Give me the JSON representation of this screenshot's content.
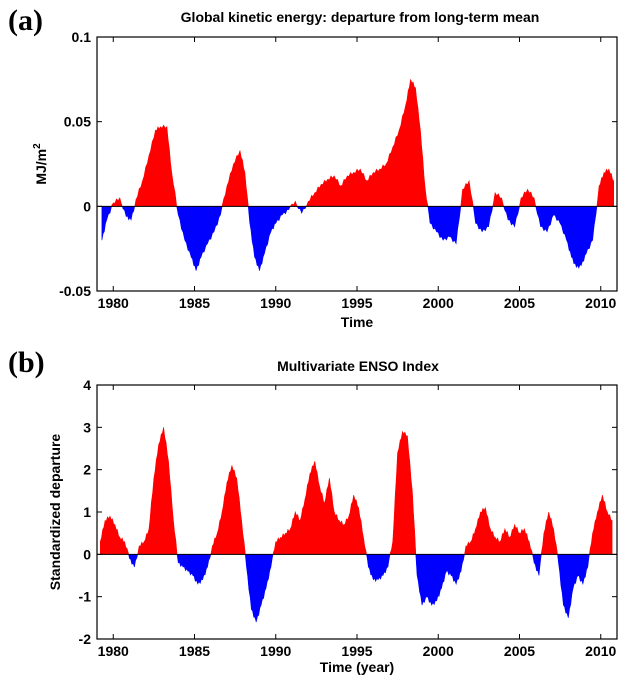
{
  "panels": [
    {
      "letter": "(a)"
    },
    {
      "letter": "(b)"
    }
  ],
  "colors": {
    "positive": "#ff0000",
    "negative": "#0000ff",
    "axis": "#000000"
  },
  "chart_data": [
    {
      "type": "area",
      "title": "Global kinetic energy: departure from long-term mean",
      "xlabel": "Time",
      "ylabel": "MJ/m",
      "ylabel_superscript": "2",
      "xlim": [
        1979,
        2011
      ],
      "ylim": [
        -0.05,
        0.1
      ],
      "xticks": [
        1980,
        1985,
        1990,
        1995,
        2000,
        2005,
        2010
      ],
      "xtick_labels": [
        "1980",
        "1985",
        "1990",
        "1995",
        "2000",
        "2005",
        "2010"
      ],
      "yticks": [
        -0.05,
        0,
        0.05,
        0.1
      ],
      "ytick_labels": [
        "-0.05",
        "0",
        "0.05",
        "0.1"
      ],
      "fill_positive": "red",
      "fill_negative": "blue",
      "x": [
        1979.3,
        1979.6,
        1980.0,
        1980.4,
        1980.8,
        1981.1,
        1981.4,
        1981.8,
        1982.2,
        1982.6,
        1982.9,
        1983.3,
        1983.6,
        1984.0,
        1984.4,
        1984.8,
        1985.1,
        1985.4,
        1985.8,
        1986.2,
        1986.6,
        1987.0,
        1987.4,
        1987.8,
        1988.1,
        1988.4,
        1988.7,
        1989.0,
        1989.3,
        1989.7,
        1990.0,
        1990.4,
        1990.8,
        1991.2,
        1991.6,
        1992.0,
        1992.4,
        1992.8,
        1993.2,
        1993.6,
        1994.0,
        1994.4,
        1994.8,
        1995.2,
        1995.6,
        1996.0,
        1996.4,
        1996.8,
        1997.2,
        1997.6,
        1998.0,
        1998.3,
        1998.6,
        1998.9,
        1999.2,
        1999.5,
        1999.9,
        2000.3,
        2000.7,
        2001.1,
        2001.5,
        2001.9,
        2002.3,
        2002.7,
        2003.1,
        2003.5,
        2003.9,
        2004.3,
        2004.7,
        2005.1,
        2005.5,
        2005.9,
        2006.3,
        2006.7,
        2007.1,
        2007.5,
        2007.9,
        2008.2,
        2008.5,
        2008.8,
        2009.1,
        2009.5,
        2009.9,
        2010.2,
        2010.5,
        2010.8
      ],
      "y": [
        -0.02,
        -0.008,
        0.002,
        0.005,
        -0.006,
        -0.008,
        0.004,
        0.015,
        0.03,
        0.045,
        0.047,
        0.047,
        0.02,
        -0.005,
        -0.02,
        -0.03,
        -0.038,
        -0.03,
        -0.022,
        -0.015,
        -0.005,
        0.012,
        0.025,
        0.033,
        0.02,
        -0.01,
        -0.03,
        -0.038,
        -0.028,
        -0.015,
        -0.01,
        -0.005,
        -0.002,
        0.003,
        -0.004,
        0.003,
        0.008,
        0.013,
        0.016,
        0.018,
        0.012,
        0.018,
        0.02,
        0.022,
        0.015,
        0.02,
        0.022,
        0.025,
        0.035,
        0.045,
        0.06,
        0.075,
        0.07,
        0.045,
        0.01,
        -0.01,
        -0.015,
        -0.02,
        -0.018,
        -0.022,
        0.01,
        0.015,
        -0.01,
        -0.015,
        -0.012,
        0.008,
        0.005,
        -0.008,
        -0.012,
        0.005,
        0.01,
        0.005,
        -0.012,
        -0.015,
        -0.005,
        -0.01,
        -0.02,
        -0.03,
        -0.036,
        -0.035,
        -0.028,
        -0.02,
        0.012,
        0.02,
        0.022,
        0.015
      ]
    },
    {
      "type": "area",
      "title": "Multivariate ENSO Index",
      "xlabel": "Time (year)",
      "ylabel": "Standardized departure",
      "xlim": [
        1979,
        2011
      ],
      "ylim": [
        -2,
        4
      ],
      "xticks": [
        1980,
        1985,
        1990,
        1995,
        2000,
        2005,
        2010
      ],
      "xtick_labels": [
        "1980",
        "1985",
        "1990",
        "1995",
        "2000",
        "2005",
        "2010"
      ],
      "yticks": [
        -2,
        -1,
        0,
        1,
        2,
        3,
        4
      ],
      "ytick_labels": [
        "-2",
        "-1",
        "0",
        "1",
        "2",
        "3",
        "4"
      ],
      "fill_positive": "red",
      "fill_negative": "blue",
      "x": [
        1979.2,
        1979.5,
        1979.8,
        1980.1,
        1980.4,
        1980.7,
        1981.0,
        1981.3,
        1981.6,
        1981.9,
        1982.2,
        1982.5,
        1982.8,
        1983.1,
        1983.4,
        1983.7,
        1984.0,
        1984.3,
        1984.6,
        1984.9,
        1985.2,
        1985.5,
        1985.8,
        1986.1,
        1986.4,
        1986.7,
        1987.0,
        1987.3,
        1987.6,
        1987.9,
        1988.2,
        1988.5,
        1988.8,
        1989.1,
        1989.4,
        1989.7,
        1990.0,
        1990.3,
        1990.6,
        1990.9,
        1991.2,
        1991.5,
        1991.8,
        1992.1,
        1992.4,
        1992.7,
        1993.0,
        1993.3,
        1993.6,
        1993.9,
        1994.2,
        1994.5,
        1994.8,
        1995.1,
        1995.4,
        1995.7,
        1996.0,
        1996.3,
        1996.6,
        1996.9,
        1997.2,
        1997.5,
        1997.8,
        1998.1,
        1998.4,
        1998.7,
        1999.0,
        1999.3,
        1999.6,
        1999.9,
        2000.2,
        2000.5,
        2000.8,
        2001.1,
        2001.4,
        2001.7,
        2002.0,
        2002.3,
        2002.6,
        2002.9,
        2003.2,
        2003.5,
        2003.8,
        2004.1,
        2004.4,
        2004.7,
        2005.0,
        2005.3,
        2005.6,
        2005.9,
        2006.2,
        2006.5,
        2006.8,
        2007.1,
        2007.4,
        2007.7,
        2008.0,
        2008.3,
        2008.6,
        2008.9,
        2009.2,
        2009.5,
        2009.8,
        2010.1,
        2010.4,
        2010.7
      ],
      "y": [
        0.3,
        0.8,
        0.9,
        0.7,
        0.4,
        0.3,
        -0.1,
        -0.3,
        0.2,
        0.3,
        0.6,
        1.8,
        2.6,
        3.0,
        2.2,
        0.8,
        -0.2,
        -0.3,
        -0.4,
        -0.5,
        -0.7,
        -0.6,
        -0.3,
        0.2,
        0.5,
        1.0,
        1.7,
        2.1,
        1.8,
        0.8,
        -0.3,
        -1.3,
        -1.6,
        -1.2,
        -0.8,
        -0.3,
        0.3,
        0.4,
        0.5,
        0.6,
        1.0,
        0.8,
        1.3,
        1.9,
        2.2,
        1.6,
        1.2,
        1.8,
        1.0,
        0.8,
        0.7,
        0.9,
        1.4,
        1.1,
        0.4,
        -0.3,
        -0.6,
        -0.6,
        -0.5,
        -0.3,
        0.3,
        2.4,
        2.9,
        2.8,
        1.5,
        -0.5,
        -1.2,
        -1.0,
        -1.2,
        -1.1,
        -0.8,
        -0.4,
        -0.5,
        -0.7,
        -0.4,
        0.2,
        0.3,
        0.6,
        1.0,
        1.1,
        0.6,
        0.4,
        0.3,
        0.6,
        0.4,
        0.7,
        0.5,
        0.6,
        0.3,
        -0.2,
        -0.5,
        0.5,
        1.0,
        0.6,
        -0.2,
        -1.2,
        -1.5,
        -0.8,
        -0.5,
        -0.7,
        -0.3,
        0.5,
        1.0,
        1.4,
        1.0,
        0.8
      ]
    }
  ]
}
